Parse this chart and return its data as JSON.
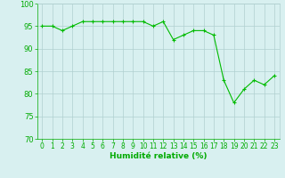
{
  "x": [
    0,
    1,
    2,
    3,
    4,
    5,
    6,
    7,
    8,
    9,
    10,
    11,
    12,
    13,
    14,
    15,
    16,
    17,
    18,
    19,
    20,
    21,
    22,
    23
  ],
  "y": [
    95,
    95,
    94,
    95,
    96,
    96,
    96,
    96,
    96,
    96,
    96,
    95,
    96,
    92,
    93,
    94,
    94,
    93,
    83,
    78,
    81,
    83,
    82,
    84
  ],
  "line_color": "#00bb00",
  "marker": "+",
  "marker_color": "#00bb00",
  "bg_color": "#d8f0f0",
  "grid_color": "#b0d0d0",
  "tick_color": "#00aa00",
  "label_color": "#00aa00",
  "xlabel": "Humidité relative (%)",
  "ylim": [
    70,
    100
  ],
  "xlim": [
    -0.5,
    23.5
  ],
  "yticks": [
    70,
    75,
    80,
    85,
    90,
    95,
    100
  ],
  "xticks": [
    0,
    1,
    2,
    3,
    4,
    5,
    6,
    7,
    8,
    9,
    10,
    11,
    12,
    13,
    14,
    15,
    16,
    17,
    18,
    19,
    20,
    21,
    22,
    23
  ]
}
